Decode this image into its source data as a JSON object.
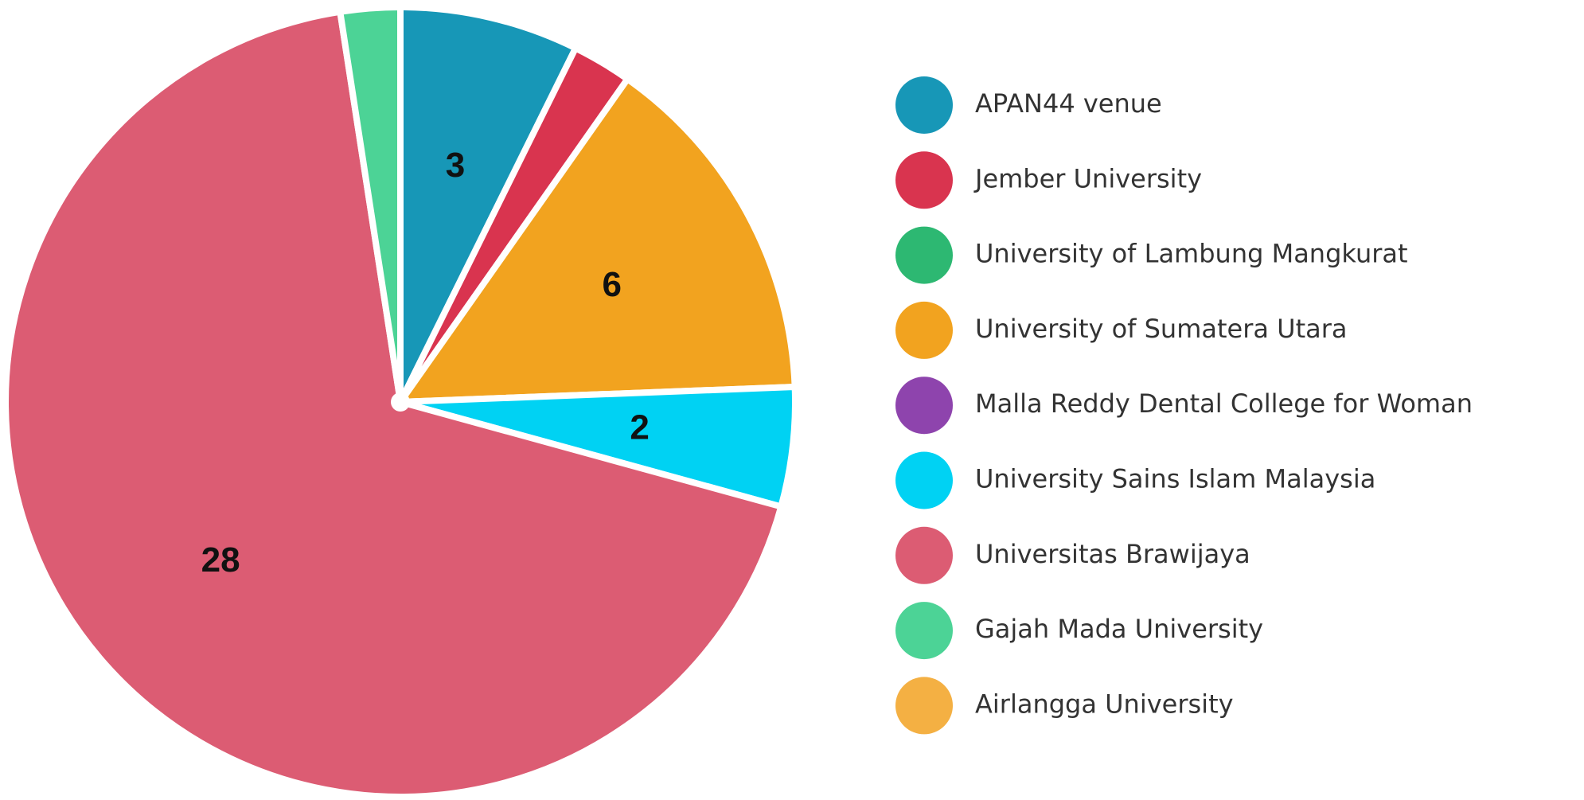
{
  "chart_data": {
    "type": "pie",
    "categories": [
      "APAN44 venue",
      "Jember University",
      "University of Lambung Mangkurat",
      "University of Sumatera Utara",
      "Malla Reddy Dental College for Woman",
      "University Sains Islam Malaysia",
      "Universitas Brawijaya",
      "Gajah Mada University",
      "Airlangga University"
    ],
    "values": [
      3,
      1,
      0,
      6,
      0,
      2,
      28,
      1,
      0
    ],
    "colors": [
      "#1797b7",
      "#d9344f",
      "#2db872",
      "#f2a31f",
      "#8e44ad",
      "#00d2f3",
      "#dc5c73",
      "#4cd396",
      "#f4b043"
    ],
    "legend": "right"
  }
}
